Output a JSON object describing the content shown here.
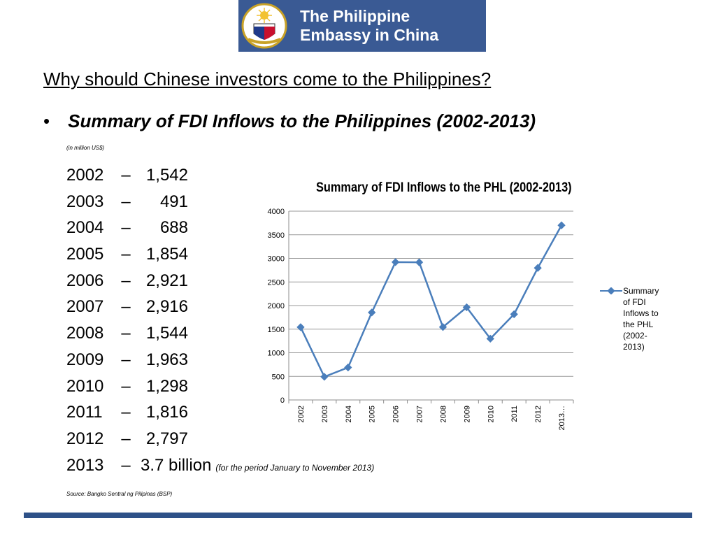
{
  "banner": {
    "line1": "The Philippine",
    "line2": "Embassy in China",
    "seal_icon": "philippine-seal-icon"
  },
  "heading": "Why should Chinese investors come to the Philippines?",
  "bullet": "Summary of FDI Inflows to the Philippines (2002-2013)",
  "unit_note": "(in million US$)",
  "list": [
    {
      "year": "2002",
      "dash": "–",
      "value": "1,542"
    },
    {
      "year": "2003",
      "dash": "–",
      "value": "491"
    },
    {
      "year": "2004",
      "dash": "–",
      "value": "688"
    },
    {
      "year": "2005",
      "dash": "–",
      "value": "1,854"
    },
    {
      "year": "2006",
      "dash": "–",
      "value": "2,921"
    },
    {
      "year": "2007",
      "dash": "–",
      "value": "2,916"
    },
    {
      "year": "2008",
      "dash": "–",
      "value": "1,544"
    },
    {
      "year": "2009",
      "dash": "–",
      "value": "1,963"
    },
    {
      "year": "2010",
      "dash": "–",
      "value": "1,298"
    },
    {
      "year": "2011",
      "dash": "–",
      "value": "1,816"
    },
    {
      "year": "2012",
      "dash": "–",
      "value": "2,797"
    },
    {
      "year": "2013",
      "dash": "–",
      "value": "3.7 billion",
      "note": "(for the period January to November 2013)"
    }
  ],
  "source": "Source:  Bangko Sentral ng Pilipinas (BSP)",
  "colors": {
    "banner": "#3a5a94",
    "series": "#4a7ebb",
    "bar": "#2e5188"
  },
  "chart_data": {
    "type": "line",
    "title": "Summary of FDI Inflows to the PHL (2002-2013)",
    "xlabel": "",
    "ylabel": "",
    "categories": [
      "2002",
      "2003",
      "2004",
      "2005",
      "2006",
      "2007",
      "2008",
      "2009",
      "2010",
      "2011",
      "2012",
      "2013…"
    ],
    "series": [
      {
        "name": "Summary of FDI Inflows to the PHL (2002-2013)",
        "values": [
          1542,
          491,
          688,
          1854,
          2921,
          2916,
          1544,
          1963,
          1298,
          1816,
          2797,
          3700
        ]
      }
    ],
    "ylim": [
      0,
      4000
    ],
    "yticks": [
      0,
      500,
      1000,
      1500,
      2000,
      2500,
      3000,
      3500,
      4000
    ],
    "grid": true,
    "legend_position": "right"
  }
}
